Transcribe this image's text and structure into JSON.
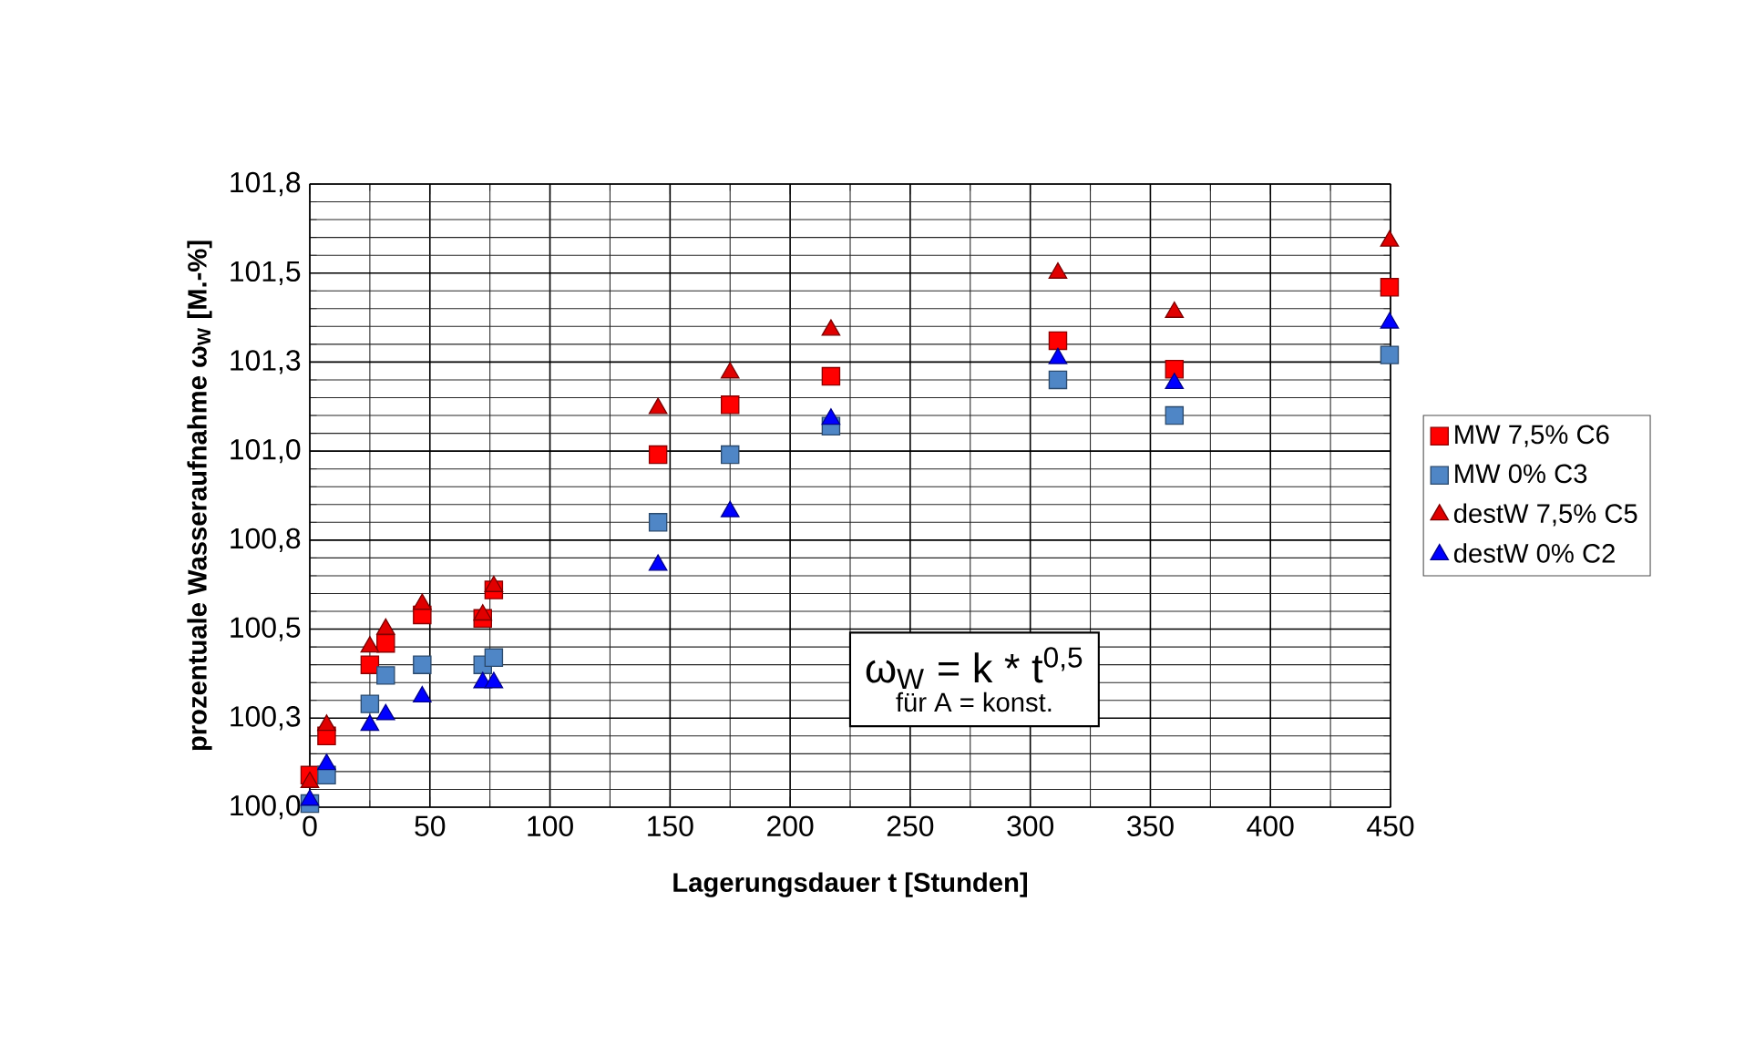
{
  "chart_data": {
    "type": "scatter",
    "xlabel": "Lagerungsdauer t  [Stunden]",
    "ylabel": "prozentuale Wasseraufnahme ω$_{W}$ [M.-%]",
    "xlim": [
      0,
      450
    ],
    "ylim": [
      100,
      101.75
    ],
    "xticks": [
      0,
      50,
      100,
      150,
      200,
      250,
      300,
      350,
      400,
      450
    ],
    "yticks": [
      {
        "value": 100,
        "label": "100,0"
      },
      {
        "value": 100.25,
        "label": "100,3"
      },
      {
        "value": 100.5,
        "label": "100,5"
      },
      {
        "value": 100.75,
        "label": "100,8"
      },
      {
        "value": 101,
        "label": "101,0"
      },
      {
        "value": 101.25,
        "label": "101,3"
      },
      {
        "value": 101.5,
        "label": "101,5"
      },
      {
        "value": 101.75,
        "label": "101,8"
      }
    ],
    "grid": true,
    "legend": "right",
    "x": [
      0,
      7,
      25,
      31.6,
      46.8,
      72,
      76.6,
      145,
      175,
      217,
      311.5,
      360,
      449.6
    ],
    "series": [
      {
        "name": "MW 7,5% C6",
        "color": "#ff0000",
        "marker": "square",
        "values": [
          100.09,
          100.2,
          100.4,
          100.46,
          100.54,
          100.53,
          100.61,
          100.99,
          101.13,
          101.21,
          101.31,
          101.23,
          101.46
        ]
      },
      {
        "name": "MW 0% C3",
        "color": "#4f86c6",
        "marker": "square",
        "values": [
          100.01,
          100.09,
          100.29,
          100.37,
          100.4,
          100.4,
          100.42,
          100.8,
          100.99,
          101.07,
          101.2,
          101.1,
          101.27
        ]
      },
      {
        "name": "destW 7,5% C5",
        "color": "#e00000",
        "marker": "triangle",
        "values": [
          100.07,
          100.23,
          100.45,
          100.5,
          100.57,
          100.54,
          100.62,
          101.12,
          101.22,
          101.34,
          101.5,
          101.39,
          101.59
        ]
      },
      {
        "name": "destW 0% C2",
        "color": "#0000ff",
        "marker": "triangle",
        "values": [
          100.02,
          100.12,
          100.23,
          100.26,
          100.31,
          100.35,
          100.35,
          100.68,
          100.83,
          101.09,
          101.26,
          101.19,
          101.36
        ]
      }
    ],
    "annotations": [
      "ω$_{W}$ = k * t$^{0,5}$",
      "für A = konst."
    ]
  }
}
